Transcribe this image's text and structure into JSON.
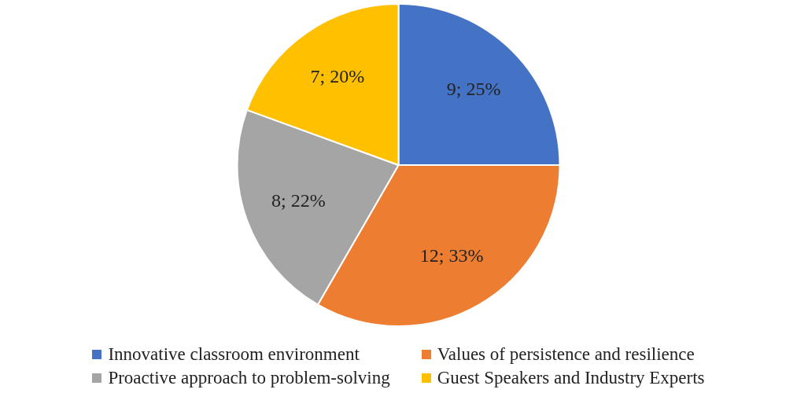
{
  "chart_data": {
    "type": "pie",
    "categories": [
      "Innovative classroom environment",
      "Values of persistence and resilience",
      "Proactive approach to problem-solving",
      "Guest Speakers and Industry Experts"
    ],
    "values": [
      9,
      12,
      8,
      7
    ],
    "colors": [
      "#4472c4",
      "#ed7d31",
      "#a5a5a5",
      "#ffc000"
    ],
    "value_labels": [
      "9; 25%",
      "12; 33%",
      "8; 22%",
      "7; 20%"
    ],
    "legend": "bottom"
  }
}
